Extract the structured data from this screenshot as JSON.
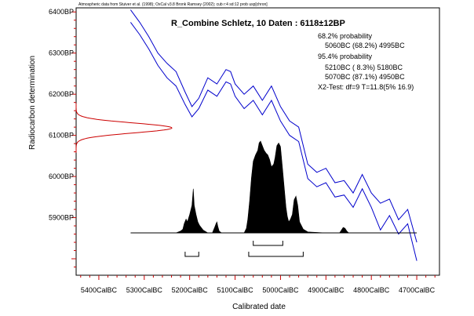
{
  "chart_data": {
    "type": "line",
    "title": "R_Combine Schletz, 10 Daten : 6118±12BP",
    "attribution": "Atmospheric data from Stuiver et al. (1998); OxCal v3.8 Bronk Ramsey (2002); cub r:4 sd:12 prob usp[chron]",
    "xlabel": "Calibrated date",
    "ylabel": "Radiocarbon determination",
    "xlim": [
      5450,
      4650
    ],
    "ylim": [
      5760,
      6410
    ],
    "x_ticks": [
      {
        "value": 5400,
        "label": "5400CalBC"
      },
      {
        "value": 5300,
        "label": "5300CalBC"
      },
      {
        "value": 5200,
        "label": "5200CalBC"
      },
      {
        "value": 5100,
        "label": "5100CalBC"
      },
      {
        "value": 5000,
        "label": "5000CalBC"
      },
      {
        "value": 4900,
        "label": "4900CalBC"
      },
      {
        "value": 4800,
        "label": "4800CalBC"
      },
      {
        "value": 4700,
        "label": "4700CalBC"
      }
    ],
    "y_ticks": [
      {
        "value": 6400,
        "label": "6400BP"
      },
      {
        "value": 6300,
        "label": "6300BP"
      },
      {
        "value": 6200,
        "label": "6200BP"
      },
      {
        "value": 6100,
        "label": "6100BP"
      },
      {
        "value": 6000,
        "label": "6000BP"
      },
      {
        "value": 5900,
        "label": "5900BP"
      }
    ],
    "annotations": [
      "68.2% probability",
      "5060BC (68.2%) 4995BC",
      "95.4% probability",
      "5210BC ( 8.3%) 5180BC",
      "5070BC (87.1%) 4950BC",
      "X2-Test: df=9 T=11.8(5% 16.9)"
    ],
    "calibration_upper": {
      "x": [
        5330,
        5310,
        5290,
        5270,
        5250,
        5230,
        5210,
        5195,
        5180,
        5160,
        5140,
        5120,
        5110,
        5100,
        5080,
        5060,
        5040,
        5020,
        5000,
        4980,
        4960,
        4940,
        4920,
        4900,
        4880,
        4860,
        4840,
        4820,
        4800,
        4780,
        4760,
        4740,
        4720,
        4700
      ],
      "y": [
        6405,
        6375,
        6340,
        6300,
        6275,
        6255,
        6205,
        6170,
        6190,
        6240,
        6225,
        6260,
        6255,
        6225,
        6200,
        6220,
        6185,
        6220,
        6170,
        6135,
        6120,
        6030,
        6010,
        6020,
        5985,
        5990,
        5960,
        6005,
        5960,
        5935,
        5945,
        5895,
        5920,
        5840
      ]
    },
    "calibration_lower": {
      "x": [
        5330,
        5310,
        5290,
        5270,
        5250,
        5230,
        5210,
        5195,
        5180,
        5160,
        5140,
        5120,
        5110,
        5100,
        5080,
        5060,
        5040,
        5020,
        5000,
        4980,
        4960,
        4940,
        4920,
        4900,
        4880,
        4860,
        4840,
        4820,
        4800,
        4780,
        4760,
        4740,
        4720,
        4700
      ],
      "y": [
        6375,
        6345,
        6310,
        6270,
        6240,
        6220,
        6175,
        6145,
        6165,
        6210,
        6195,
        6230,
        6225,
        6195,
        6165,
        6185,
        6150,
        6185,
        6135,
        6100,
        6085,
        5995,
        5975,
        5985,
        5950,
        5955,
        5925,
        5970,
        5925,
        5870,
        5905,
        5860,
        5885,
        5795
      ]
    },
    "radiocarbon_distribution": {
      "mean": 6118,
      "sd": 12,
      "color": "#cc0000"
    },
    "posterior_distribution": {
      "x": [
        5290,
        5230,
        5220,
        5215,
        5212,
        5208,
        5205,
        5200,
        5195,
        5192,
        5190,
        5186,
        5182,
        5178,
        5170,
        5160,
        5150,
        5145,
        5142,
        5140,
        5138,
        5135,
        5130,
        5110,
        5080,
        5075,
        5072,
        5068,
        5064,
        5060,
        5055,
        5050,
        5047,
        5044,
        5040,
        5036,
        5032,
        5028,
        5024,
        5020,
        5015,
        5012,
        5008,
        5004,
        5000,
        4996,
        4992,
        4988,
        4985,
        4982,
        4978,
        4974,
        4970,
        4966,
        4962,
        4958,
        4950,
        4940,
        4900,
        4870,
        4866,
        4862,
        4858,
        4854,
        4850,
        4800,
        4700
      ],
      "y": [
        0,
        0,
        0.02,
        0.04,
        0.1,
        0.15,
        0.12,
        0.2,
        0.3,
        0.48,
        0.3,
        0.2,
        0.12,
        0.08,
        0.03,
        0,
        0,
        0.06,
        0.1,
        0.12,
        0.07,
        0.02,
        0,
        0,
        0,
        0.05,
        0.15,
        0.35,
        0.6,
        0.78,
        0.85,
        0.9,
        0.98,
        1.0,
        0.95,
        0.9,
        0.87,
        0.85,
        0.8,
        0.72,
        0.75,
        0.82,
        0.95,
        0.98,
        0.94,
        0.72,
        0.5,
        0.28,
        0.18,
        0.12,
        0.15,
        0.2,
        0.36,
        0.4,
        0.3,
        0.12,
        0.04,
        0.01,
        0,
        0,
        0.03,
        0.06,
        0.05,
        0.02,
        0,
        0,
        0
      ]
    },
    "baseline": {
      "from": 5330,
      "to": 4700
    },
    "ranges_68": [
      [
        5060,
        4995
      ]
    ],
    "ranges_95": [
      [
        5210,
        5180
      ],
      [
        5070,
        4950
      ]
    ],
    "grid": false,
    "colors": {
      "calibration": "#0000cc",
      "radiocarbon": "#cc0000",
      "posterior": "#000000",
      "axis_ticks": "#cc0000",
      "frame": "#000000"
    }
  }
}
